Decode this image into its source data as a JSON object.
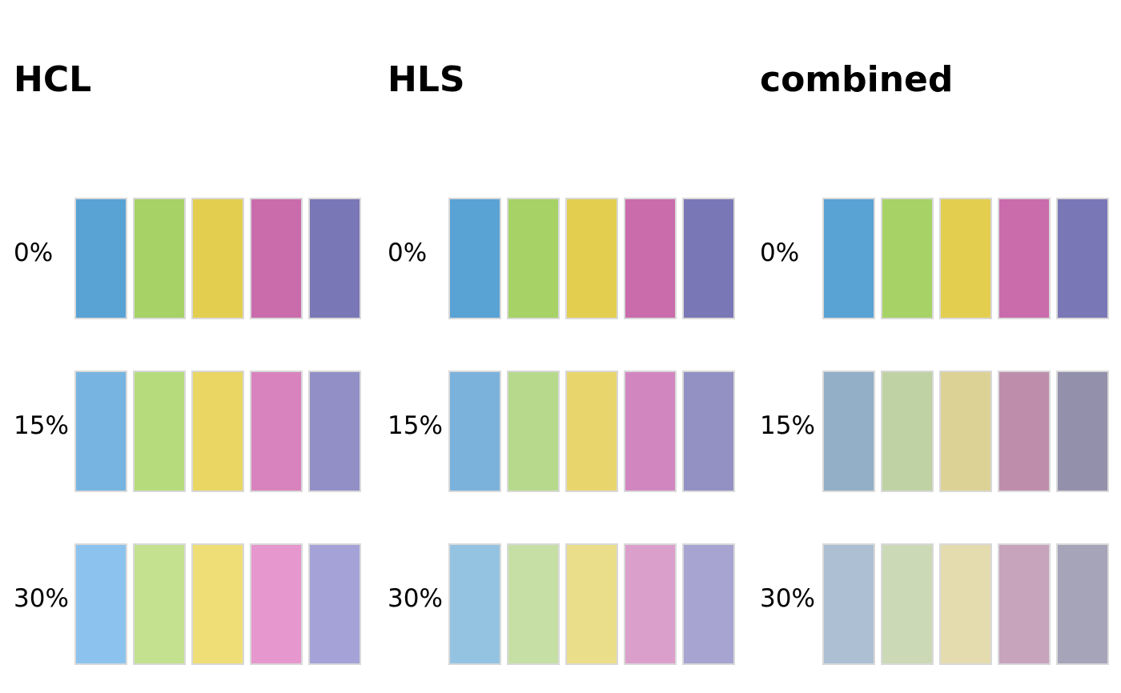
{
  "figure": {
    "background": "#ffffff",
    "text_color": "#000000",
    "swatch_border_color": "#d9d9d9"
  },
  "chart_data": {
    "type": "heatmap",
    "title": "",
    "description": "Comparison of color-palette lightening/desaturation methods (HCL, HLS, combined) applied to a 5-color qualitative palette at 0%, 15% and 30% amounts",
    "columns": [
      "HCL",
      "HLS",
      "combined"
    ],
    "row_labels": [
      "0%",
      "15%",
      "30%"
    ],
    "colors_per_row": 5,
    "legend_position": "none",
    "grid": false,
    "panels": [
      {
        "title": "HCL",
        "rows": [
          {
            "label": "0%",
            "colors": [
              "#58a2d4",
              "#a6d266",
              "#e4ce50",
              "#ca6bac",
              "#7a77b6"
            ]
          },
          {
            "label": "15%",
            "colors": [
              "#77b4e1",
              "#b5db7d",
              "#e9d663",
              "#d883bd",
              "#918fc5"
            ]
          },
          {
            "label": "30%",
            "colors": [
              "#8cc3ee",
              "#c3e18f",
              "#efde76",
              "#e697cd",
              "#a4a2d6"
            ]
          }
        ]
      },
      {
        "title": "HLS",
        "rows": [
          {
            "label": "0%",
            "colors": [
              "#58a2d4",
              "#a6d266",
              "#e4ce50",
              "#ca6bac",
              "#7a77b6"
            ]
          },
          {
            "label": "15%",
            "colors": [
              "#7ab2dc",
              "#b6d98c",
              "#e8d66c",
              "#d286c0",
              "#9390c3"
            ]
          },
          {
            "label": "30%",
            "colors": [
              "#94c3e2",
              "#c5dfa5",
              "#ebde8b",
              "#db9fcb",
              "#a7a4d1"
            ]
          }
        ]
      },
      {
        "title": "combined",
        "rows": [
          {
            "label": "0%",
            "colors": [
              "#58a2d4",
              "#a6d266",
              "#e4ce50",
              "#ca6bac",
              "#7a77b6"
            ]
          },
          {
            "label": "15%",
            "colors": [
              "#93aec7",
              "#bfd2a3",
              "#ddd295",
              "#bf8dac",
              "#9290aa"
            ]
          },
          {
            "label": "30%",
            "colors": [
              "#adc0d3",
              "#cbd9b7",
              "#e4dbaf",
              "#c7a3bc",
              "#a6a4b9"
            ]
          }
        ]
      }
    ]
  }
}
